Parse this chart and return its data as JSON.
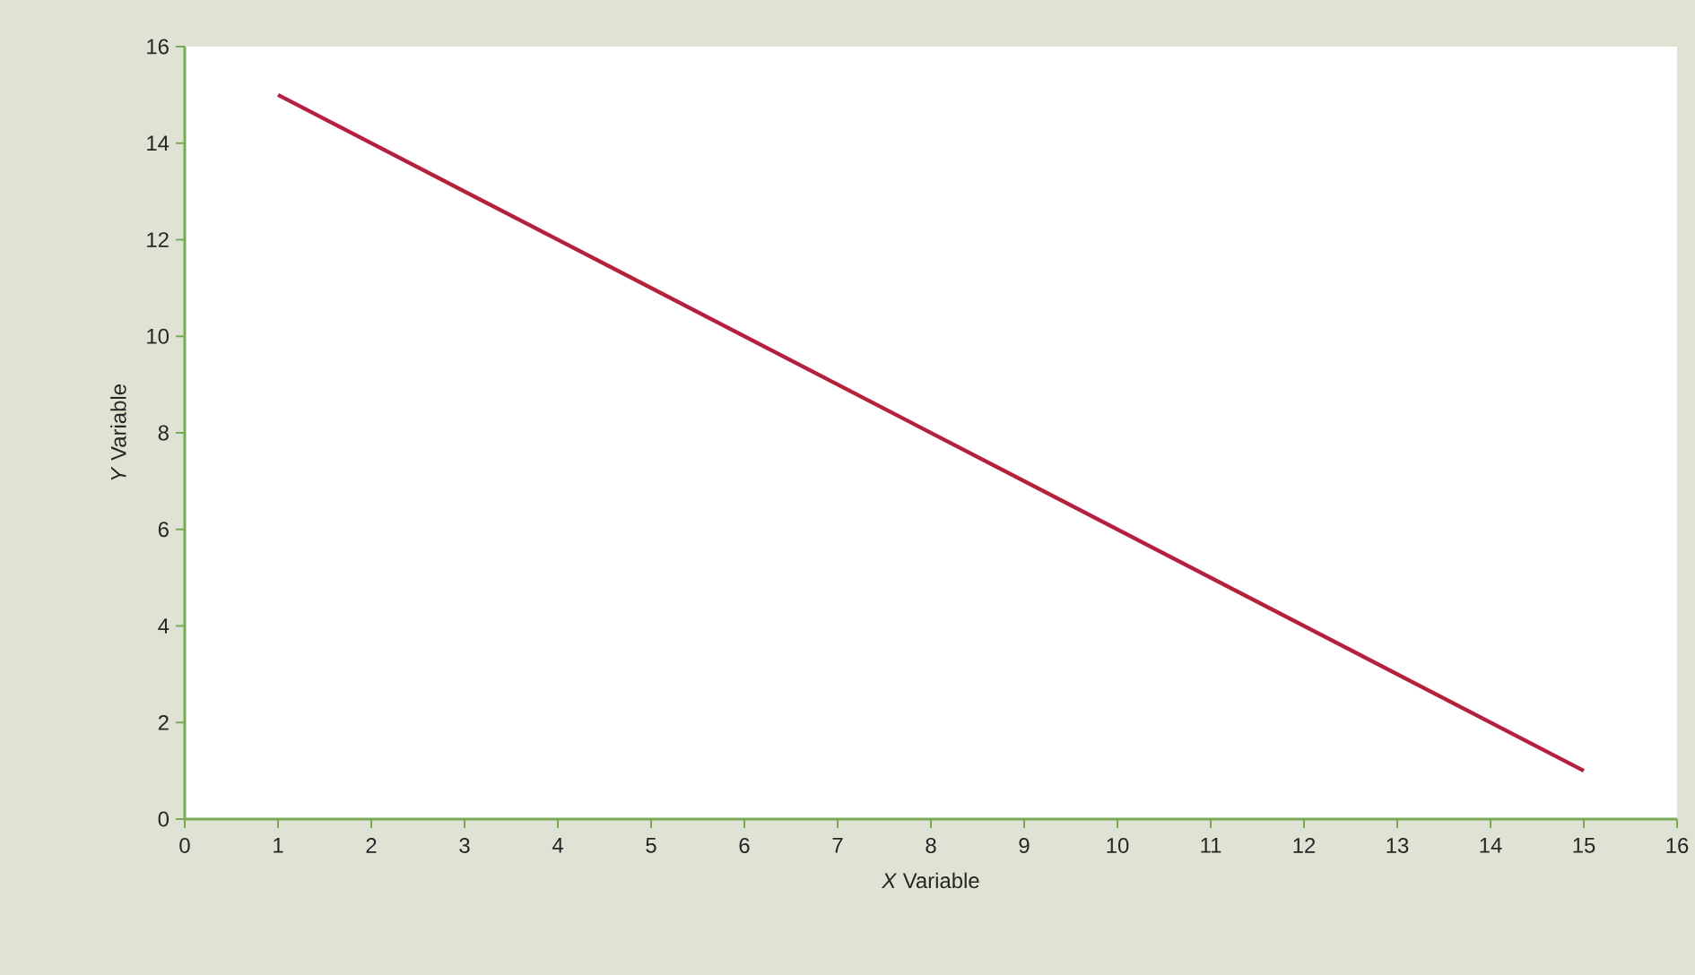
{
  "chart_data": {
    "type": "line",
    "xlabel": "*X* Variable",
    "ylabel": "*Y* Variable",
    "x": [
      1,
      15
    ],
    "series": [
      {
        "color": "#b5203f",
        "values": [
          15,
          1
        ]
      }
    ],
    "xlim": [
      0,
      16
    ],
    "ylim": [
      0,
      16
    ],
    "xticks": [
      0,
      1,
      2,
      3,
      4,
      5,
      6,
      7,
      8,
      9,
      10,
      11,
      12,
      13,
      14,
      15,
      16
    ],
    "yticks": [
      0,
      2,
      4,
      6,
      8,
      10,
      12,
      14,
      16
    ]
  }
}
